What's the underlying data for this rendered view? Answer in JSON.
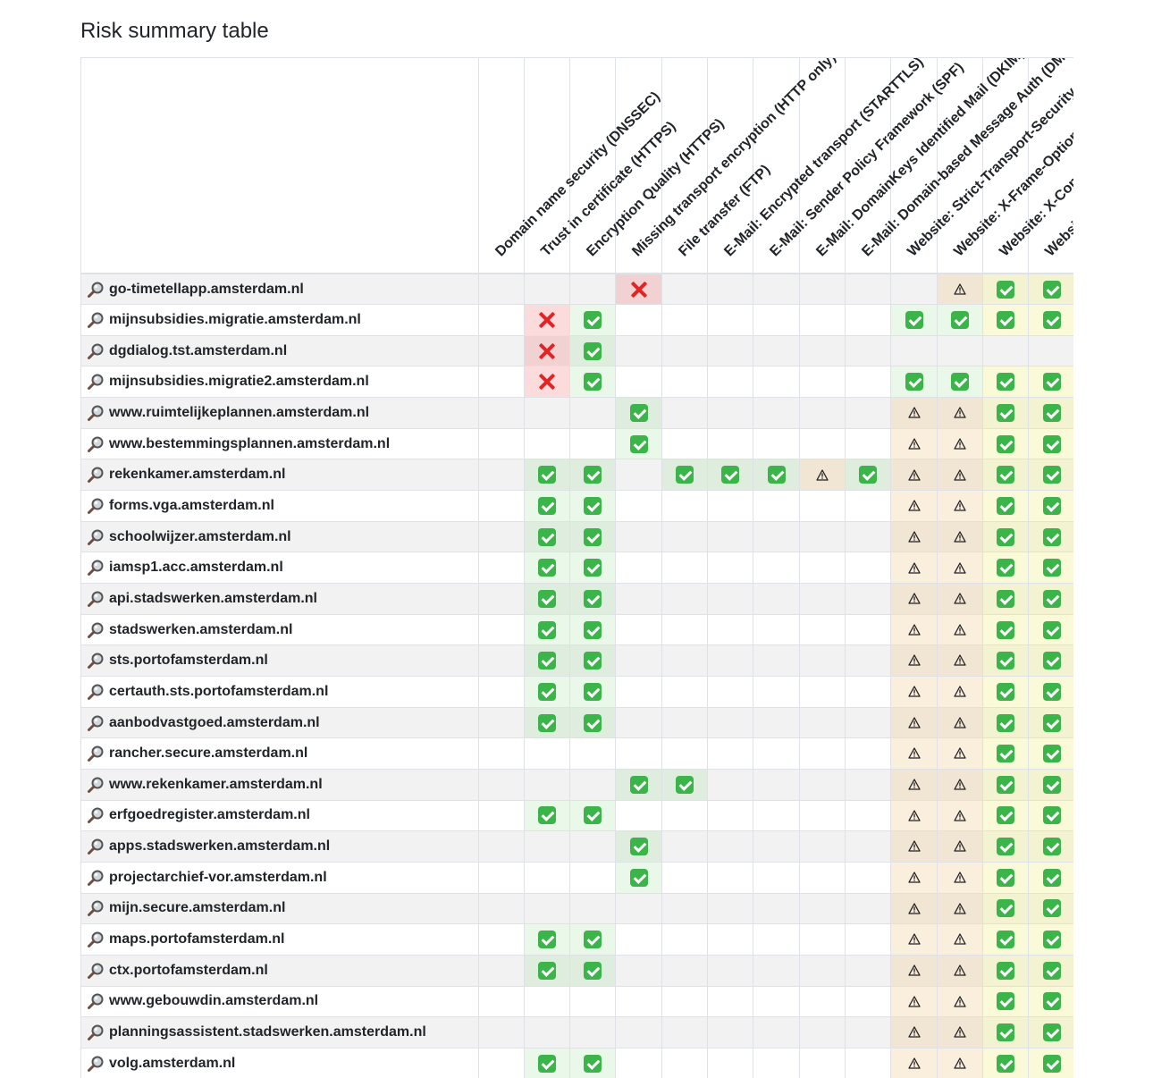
{
  "title": "Risk summary table",
  "icons": {
    "search": "magnifying-glass-icon",
    "ok": "check-mark-icon",
    "failed": "cross-mark-icon",
    "warning": "warning-icon"
  },
  "colors": {
    "ok": "#3bb54a",
    "failed": "#e32424",
    "ok_bg": "#e8f6e6",
    "failed_bg": "#f9d6d6",
    "warning_bg": "#f8ecd8"
  },
  "legend": {
    "v": "ok",
    "x": "failed",
    "w": "warning",
    "-": "empty"
  },
  "columns": [
    "Domain name security (DNSSEC)",
    "Trust in certificate (HTTPS)",
    "Encryption Quality (HTTPS)",
    "Missing transport encryption (HTTP only)",
    "File transfer (FTP)",
    "E-Mail: Encrypted transport (STARTTLS)",
    "E-Mail: Sender Policy Framework (SPF)",
    "E-Mail: DomainKeys Identified Mail (DKIM)",
    "E-Mail: Domain-based Message Auth (DMARC)",
    "Website: Strict-Transport-Security (HSTS)",
    "Website: X-Frame-Options",
    "Website: X-Content-Type-Options",
    "Website: X-XSS-Protection"
  ],
  "rows": [
    {
      "domain": "go-timetellapp.amsterdam.nl",
      "cells": [
        "-",
        "-",
        "-",
        "x",
        "-",
        "-",
        "-",
        "-",
        "-",
        "-",
        "w",
        "v",
        "v"
      ]
    },
    {
      "domain": "mijnsubsidies.migratie.amsterdam.nl",
      "cells": [
        "-",
        "x",
        "v",
        "-",
        "-",
        "-",
        "-",
        "-",
        "-",
        "v",
        "v",
        "v",
        "v"
      ]
    },
    {
      "domain": "dgdialog.tst.amsterdam.nl",
      "cells": [
        "-",
        "x",
        "v",
        "-",
        "-",
        "-",
        "-",
        "-",
        "-",
        "-",
        "-",
        "-",
        "-"
      ]
    },
    {
      "domain": "mijnsubsidies.migratie2.amsterdam.nl",
      "cells": [
        "-",
        "x",
        "v",
        "-",
        "-",
        "-",
        "-",
        "-",
        "-",
        "v",
        "v",
        "v",
        "v"
      ]
    },
    {
      "domain": "www.ruimtelijkeplannen.amsterdam.nl",
      "cells": [
        "-",
        "-",
        "-",
        "v",
        "-",
        "-",
        "-",
        "-",
        "-",
        "w",
        "w",
        "v",
        "v"
      ]
    },
    {
      "domain": "www.bestemmingsplannen.amsterdam.nl",
      "cells": [
        "-",
        "-",
        "-",
        "v",
        "-",
        "-",
        "-",
        "-",
        "-",
        "w",
        "w",
        "v",
        "v"
      ]
    },
    {
      "domain": "rekenkamer.amsterdam.nl",
      "cells": [
        "-",
        "v",
        "v",
        "-",
        "v",
        "v",
        "v",
        "w",
        "v",
        "w",
        "w",
        "v",
        "v"
      ]
    },
    {
      "domain": "forms.vga.amsterdam.nl",
      "cells": [
        "-",
        "v",
        "v",
        "-",
        "-",
        "-",
        "-",
        "-",
        "-",
        "w",
        "w",
        "v",
        "v"
      ]
    },
    {
      "domain": "schoolwijzer.amsterdam.nl",
      "cells": [
        "-",
        "v",
        "v",
        "-",
        "-",
        "-",
        "-",
        "-",
        "-",
        "w",
        "w",
        "v",
        "v"
      ]
    },
    {
      "domain": "iamsp1.acc.amsterdam.nl",
      "cells": [
        "-",
        "v",
        "v",
        "-",
        "-",
        "-",
        "-",
        "-",
        "-",
        "w",
        "w",
        "v",
        "v"
      ]
    },
    {
      "domain": "api.stadswerken.amsterdam.nl",
      "cells": [
        "-",
        "v",
        "v",
        "-",
        "-",
        "-",
        "-",
        "-",
        "-",
        "w",
        "w",
        "v",
        "v"
      ]
    },
    {
      "domain": "stadswerken.amsterdam.nl",
      "cells": [
        "-",
        "v",
        "v",
        "-",
        "-",
        "-",
        "-",
        "-",
        "-",
        "w",
        "w",
        "v",
        "v"
      ]
    },
    {
      "domain": "sts.portofamsterdam.nl",
      "cells": [
        "-",
        "v",
        "v",
        "-",
        "-",
        "-",
        "-",
        "-",
        "-",
        "w",
        "w",
        "v",
        "v"
      ]
    },
    {
      "domain": "certauth.sts.portofamsterdam.nl",
      "cells": [
        "-",
        "v",
        "v",
        "-",
        "-",
        "-",
        "-",
        "-",
        "-",
        "w",
        "w",
        "v",
        "v"
      ]
    },
    {
      "domain": "aanbodvastgoed.amsterdam.nl",
      "cells": [
        "-",
        "v",
        "v",
        "-",
        "-",
        "-",
        "-",
        "-",
        "-",
        "w",
        "w",
        "v",
        "v"
      ]
    },
    {
      "domain": "rancher.secure.amsterdam.nl",
      "cells": [
        "-",
        "-",
        "-",
        "-",
        "-",
        "-",
        "-",
        "-",
        "-",
        "w",
        "w",
        "v",
        "v"
      ]
    },
    {
      "domain": "www.rekenkamer.amsterdam.nl",
      "cells": [
        "-",
        "-",
        "-",
        "v",
        "v",
        "-",
        "-",
        "-",
        "-",
        "w",
        "w",
        "v",
        "v"
      ]
    },
    {
      "domain": "erfgoedregister.amsterdam.nl",
      "cells": [
        "-",
        "v",
        "v",
        "-",
        "-",
        "-",
        "-",
        "-",
        "-",
        "w",
        "w",
        "v",
        "v"
      ]
    },
    {
      "domain": "apps.stadswerken.amsterdam.nl",
      "cells": [
        "-",
        "-",
        "-",
        "v",
        "-",
        "-",
        "-",
        "-",
        "-",
        "w",
        "w",
        "v",
        "v"
      ]
    },
    {
      "domain": "projectarchief-vor.amsterdam.nl",
      "cells": [
        "-",
        "-",
        "-",
        "v",
        "-",
        "-",
        "-",
        "-",
        "-",
        "w",
        "w",
        "v",
        "v"
      ]
    },
    {
      "domain": "mijn.secure.amsterdam.nl",
      "cells": [
        "-",
        "-",
        "-",
        "-",
        "-",
        "-",
        "-",
        "-",
        "-",
        "w",
        "w",
        "v",
        "v"
      ]
    },
    {
      "domain": "maps.portofamsterdam.nl",
      "cells": [
        "-",
        "v",
        "v",
        "-",
        "-",
        "-",
        "-",
        "-",
        "-",
        "w",
        "w",
        "v",
        "v"
      ]
    },
    {
      "domain": "ctx.portofamsterdam.nl",
      "cells": [
        "-",
        "v",
        "v",
        "-",
        "-",
        "-",
        "-",
        "-",
        "-",
        "w",
        "w",
        "v",
        "v"
      ]
    },
    {
      "domain": "www.gebouwdin.amsterdam.nl",
      "cells": [
        "-",
        "-",
        "-",
        "-",
        "-",
        "-",
        "-",
        "-",
        "-",
        "w",
        "w",
        "v",
        "v"
      ]
    },
    {
      "domain": "planningsassistent.stadswerken.amsterdam.nl",
      "cells": [
        "-",
        "-",
        "-",
        "-",
        "-",
        "-",
        "-",
        "-",
        "-",
        "w",
        "w",
        "v",
        "v"
      ]
    },
    {
      "domain": "volg.amsterdam.nl",
      "cells": [
        "-",
        "v",
        "v",
        "-",
        "-",
        "-",
        "-",
        "-",
        "-",
        "w",
        "w",
        "v",
        "v"
      ]
    }
  ]
}
